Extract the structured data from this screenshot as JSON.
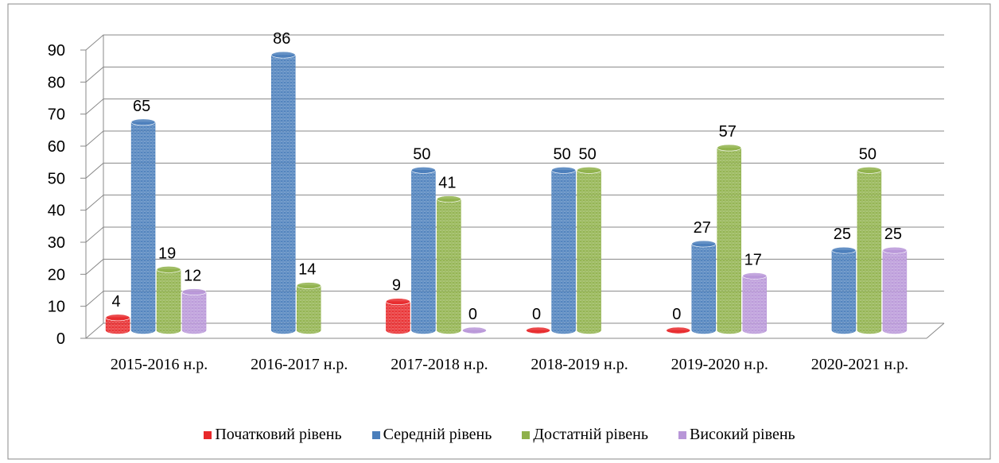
{
  "chart_data": {
    "type": "bar3d",
    "categories": [
      "2015-2016 н.р.",
      "2016-2017 н.р.",
      "2017-2018 н.р.",
      "2018-2019 н.р.",
      "2019-2020 н.р.",
      "2020-2021 н.р."
    ],
    "series": [
      {
        "name": "Початковий рівень",
        "color": "#e8282a",
        "values": [
          4,
          null,
          9,
          0,
          0,
          null
        ]
      },
      {
        "name": "Середній рівень",
        "color": "#4a7ebb",
        "values": [
          65,
          86,
          50,
          50,
          27,
          25
        ]
      },
      {
        "name": "Достатній рівень",
        "color": "#8fb14a",
        "values": [
          19,
          14,
          41,
          50,
          57,
          50
        ]
      },
      {
        "name": "Високий рівень",
        "color": "#b896d8",
        "values": [
          12,
          null,
          0,
          null,
          17,
          25
        ]
      }
    ],
    "ylim": [
      0,
      90
    ],
    "yticks": [
      0,
      10,
      20,
      30,
      40,
      50,
      60,
      70,
      80,
      90
    ],
    "grid": true
  }
}
